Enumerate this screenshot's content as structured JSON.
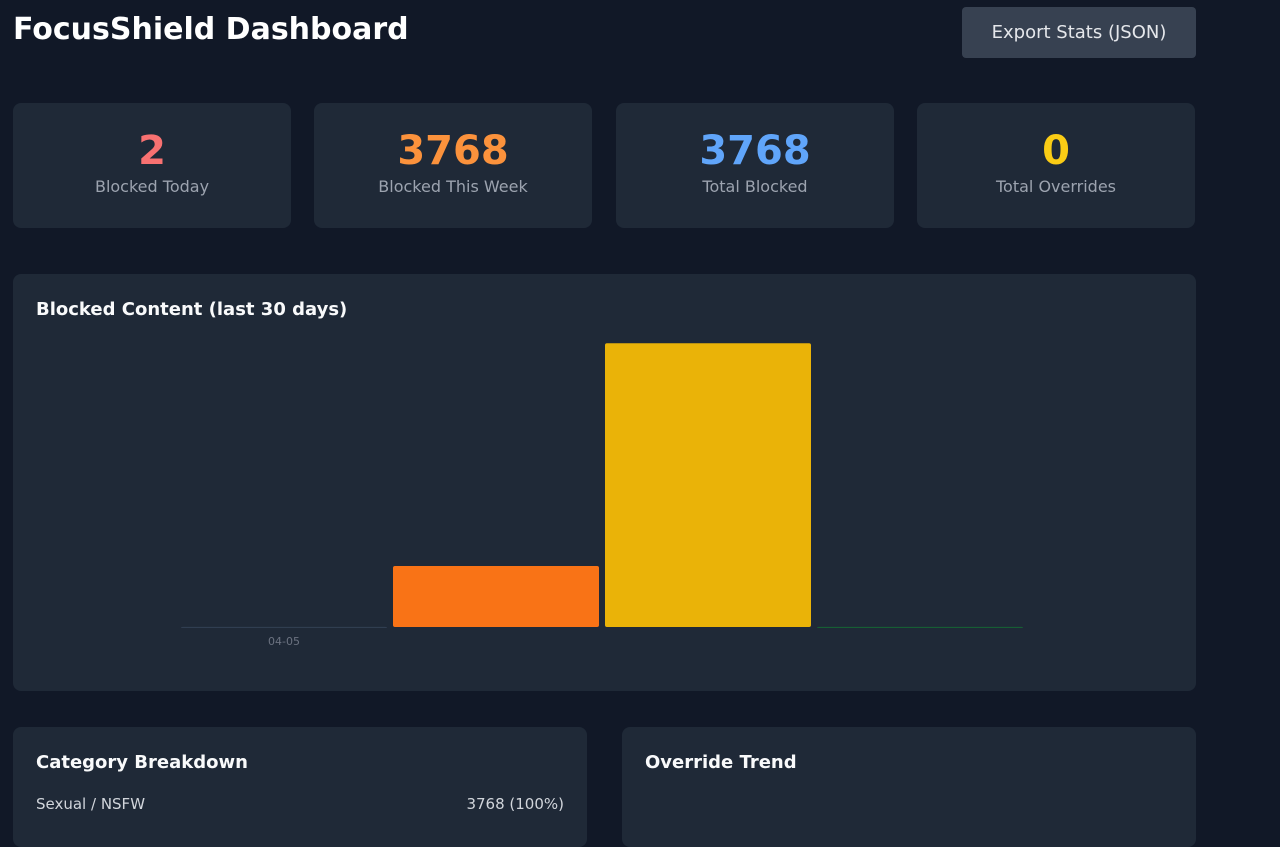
{
  "header": {
    "title": "FocusShield Dashboard",
    "export_button": "Export Stats (JSON)"
  },
  "stats": [
    {
      "value": "2",
      "label": "Blocked Today",
      "color": "#f87171"
    },
    {
      "value": "3768",
      "label": "Blocked This Week",
      "color": "#fb923c"
    },
    {
      "value": "3768",
      "label": "Total Blocked",
      "color": "#60a5fa"
    },
    {
      "value": "0",
      "label": "Total Overrides",
      "color": "#facc15"
    }
  ],
  "chart_data": {
    "type": "bar",
    "title": "Blocked Content (last 30 days)",
    "categories": [
      "04-05",
      null,
      null,
      null
    ],
    "values": [
      1,
      666,
      3099,
      2
    ],
    "colors": [
      "#334155",
      "#f97316",
      "#eab308",
      "#166534"
    ],
    "ylim": [
      0,
      3200
    ]
  },
  "panels": [
    {
      "title": "Category Breakdown",
      "rows": [
        {
          "name": "Sexual / NSFW",
          "value": "3768 (100%)"
        }
      ]
    },
    {
      "title": "Override Trend"
    }
  ]
}
